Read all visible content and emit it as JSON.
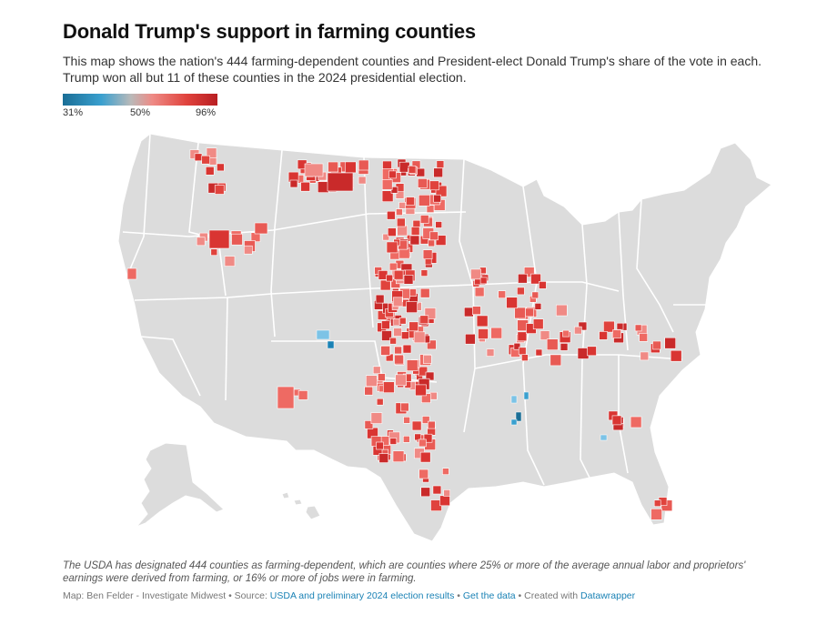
{
  "header": {
    "title": "Donald Trump's support in farming counties",
    "subtitle": "This map shows the nation's 444 farming-dependent counties and President-elect Donald Trump's share of the vote in each. Trump won all but 11 of these counties in the 2024 presidential election."
  },
  "legend": {
    "min_label": "31%",
    "mid_label": "50%",
    "max_label": "96%",
    "colors": [
      "#1a6e96",
      "#3aa0cf",
      "#b9b9b9",
      "#ee8a85",
      "#e0433d",
      "#b81e22"
    ]
  },
  "map": {
    "colors": {
      "land": "#dcdcdc",
      "state_border": "#ffffff"
    }
  },
  "notes": {
    "text": "The USDA has designated 444 counties as farming-dependent, which are counties where 25% or more of the average annual labor and proprietors' earnings were derived from farming, or 16% or more of jobs were in farming."
  },
  "footer": {
    "map_by": "Map: Ben Felder - Investigate Midwest",
    "sep1": " • Source: ",
    "source_link": "USDA and preliminary 2024 election results",
    "sep2": " • ",
    "data_link": "Get the data",
    "sep3": " • Created with ",
    "tool_link": "Datawrapper"
  }
}
